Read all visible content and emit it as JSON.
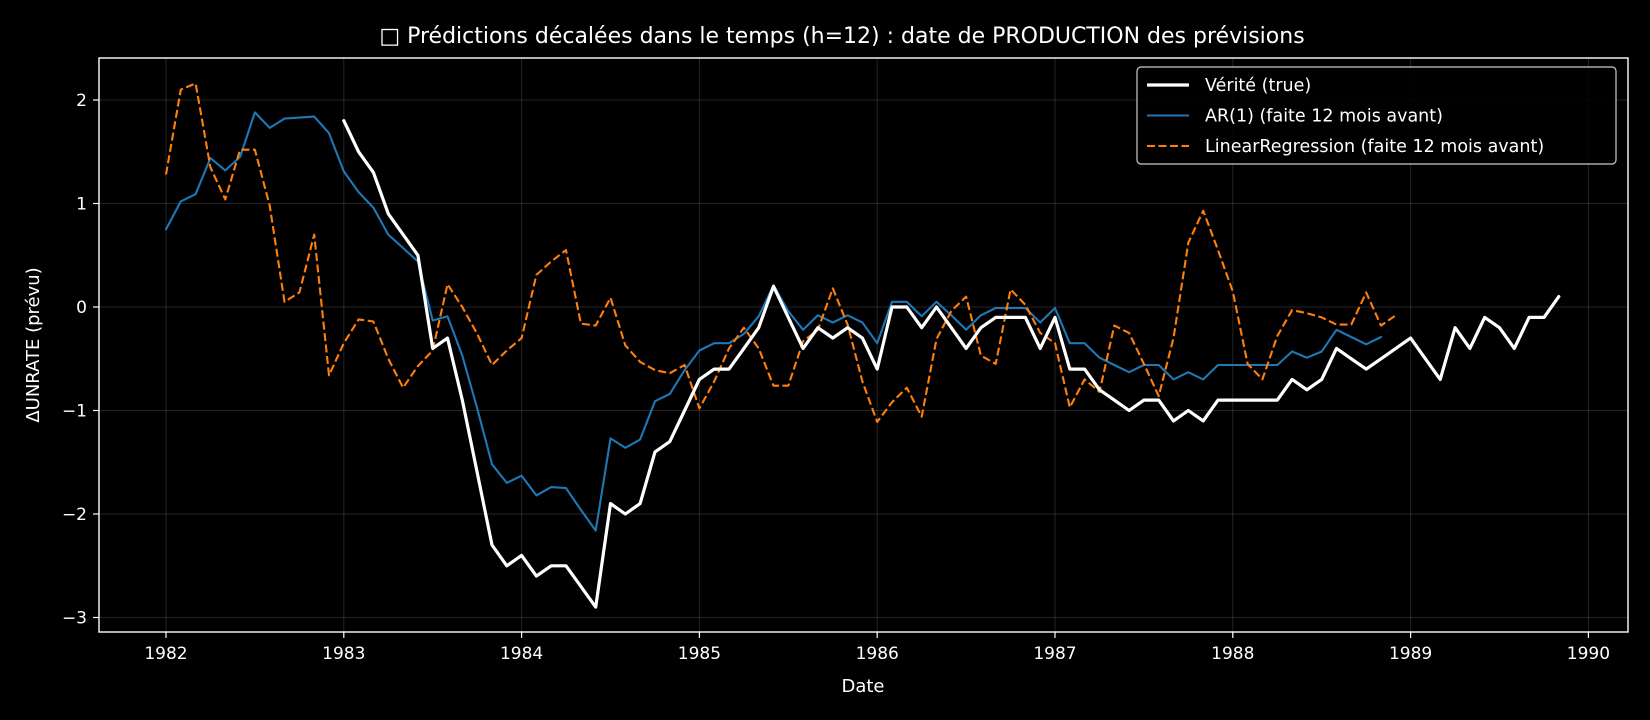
{
  "chart_data": {
    "type": "line",
    "title": "□ Prédictions décalées dans le temps (h=12) : date de PRODUCTION des prévisions",
    "xlabel": "Date",
    "ylabel": "ΔUNRATE (prévu)",
    "xlim": [
      1981.6,
      1990.2
    ],
    "ylim": [
      -3.15,
      2.42
    ],
    "x_ticks": [
      1982,
      1983,
      1984,
      1985,
      1986,
      1987,
      1988,
      1989,
      1990
    ],
    "x_tick_labels": [
      "1982",
      "1983",
      "1984",
      "1985",
      "1986",
      "1987",
      "1988",
      "1989",
      "1990"
    ],
    "y_ticks": [
      -3,
      -2,
      -1,
      0,
      1,
      2
    ],
    "y_tick_labels": [
      "−3",
      "−2",
      "−1",
      "0",
      "1",
      "2"
    ],
    "grid": true,
    "legend_position": "top-right",
    "series": [
      {
        "name": "Vérité (true)",
        "color": "#ffffff",
        "dash": "solid",
        "width": "thick",
        "x_start": 1983.0,
        "values": [
          1.8,
          1.5,
          1.3,
          0.9,
          0.7,
          0.5,
          -0.4,
          -0.3,
          -0.9,
          -1.6,
          -2.3,
          -2.5,
          -2.4,
          -2.6,
          -2.5,
          -2.5,
          -2.7,
          -2.9,
          -1.9,
          -2.0,
          -1.9,
          -1.4,
          -1.3,
          -1.0,
          -0.7,
          -0.6,
          -0.6,
          -0.4,
          -0.2,
          0.2,
          -0.1,
          -0.4,
          -0.2,
          -0.3,
          -0.2,
          -0.3,
          -0.6,
          0.0,
          0.0,
          -0.2,
          0.0,
          -0.2,
          -0.4,
          -0.2,
          -0.1,
          -0.1,
          -0.1,
          -0.4,
          -0.1,
          -0.6,
          -0.6,
          -0.8,
          -0.9,
          -1.0,
          -0.9,
          -0.9,
          -1.1,
          -1.0,
          -1.1,
          -0.9,
          -0.9,
          -0.9,
          -0.9,
          -0.9,
          -0.7,
          -0.8,
          -0.7,
          -0.4,
          -0.5,
          -0.6,
          -0.5,
          -0.4,
          -0.3,
          -0.5,
          -0.7,
          -0.2,
          -0.4,
          -0.1,
          -0.2,
          -0.4,
          -0.1,
          -0.1,
          0.1
        ]
      },
      {
        "name": "AR(1) (faite 12 mois avant)",
        "color": "#1f77b4",
        "dash": "solid",
        "width": "normal",
        "x_start": 1982.0,
        "values": [
          0.75,
          1.02,
          1.09,
          1.44,
          1.32,
          1.45,
          1.88,
          1.73,
          1.82,
          1.83,
          1.84,
          1.68,
          1.31,
          1.11,
          0.96,
          0.7,
          0.57,
          0.44,
          -0.13,
          -0.09,
          -0.47,
          -0.98,
          -1.52,
          -1.7,
          -1.63,
          -1.82,
          -1.74,
          -1.75,
          -1.96,
          -2.16,
          -1.27,
          -1.36,
          -1.28,
          -0.91,
          -0.84,
          -0.61,
          -0.42,
          -0.35,
          -0.35,
          -0.26,
          -0.09,
          0.21,
          -0.04,
          -0.22,
          -0.08,
          -0.15,
          -0.08,
          -0.15,
          -0.35,
          0.05,
          0.05,
          -0.09,
          0.05,
          -0.08,
          -0.22,
          -0.08,
          -0.01,
          -0.01,
          -0.01,
          -0.15,
          -0.01,
          -0.35,
          -0.35,
          -0.49,
          -0.56,
          -0.63,
          -0.56,
          -0.56,
          -0.7,
          -0.63,
          -0.7,
          -0.56,
          -0.56,
          -0.56,
          -0.56,
          -0.56,
          -0.43,
          -0.49,
          -0.43,
          -0.22,
          -0.29,
          -0.36,
          -0.29
        ]
      },
      {
        "name": "LinearRegression (faite 12 mois avant)",
        "color": "#ff7f0e",
        "dash": "dashed",
        "width": "normal",
        "x_start": 1982.0,
        "values": [
          1.28,
          2.1,
          2.16,
          1.35,
          1.04,
          1.52,
          1.52,
          0.98,
          0.05,
          0.14,
          0.7,
          -0.66,
          -0.35,
          -0.12,
          -0.14,
          -0.5,
          -0.78,
          -0.57,
          -0.42,
          0.22,
          0.0,
          -0.26,
          -0.56,
          -0.42,
          -0.3,
          0.31,
          0.44,
          0.55,
          -0.16,
          -0.18,
          0.09,
          -0.37,
          -0.53,
          -0.61,
          -0.64,
          -0.56,
          -0.98,
          -0.72,
          -0.4,
          -0.2,
          -0.4,
          -0.76,
          -0.76,
          -0.33,
          -0.22,
          0.18,
          -0.17,
          -0.72,
          -1.11,
          -0.92,
          -0.78,
          -1.06,
          -0.31,
          -0.04,
          0.1,
          -0.47,
          -0.55,
          0.17,
          0.02,
          -0.25,
          -0.35,
          -0.97,
          -0.7,
          -0.82,
          -0.18,
          -0.25,
          -0.55,
          -0.86,
          -0.3,
          0.62,
          0.93,
          0.55,
          0.15,
          -0.55,
          -0.7,
          -0.28,
          -0.03,
          -0.06,
          -0.1,
          -0.17,
          -0.17,
          0.14,
          -0.18,
          -0.08
        ]
      }
    ]
  }
}
